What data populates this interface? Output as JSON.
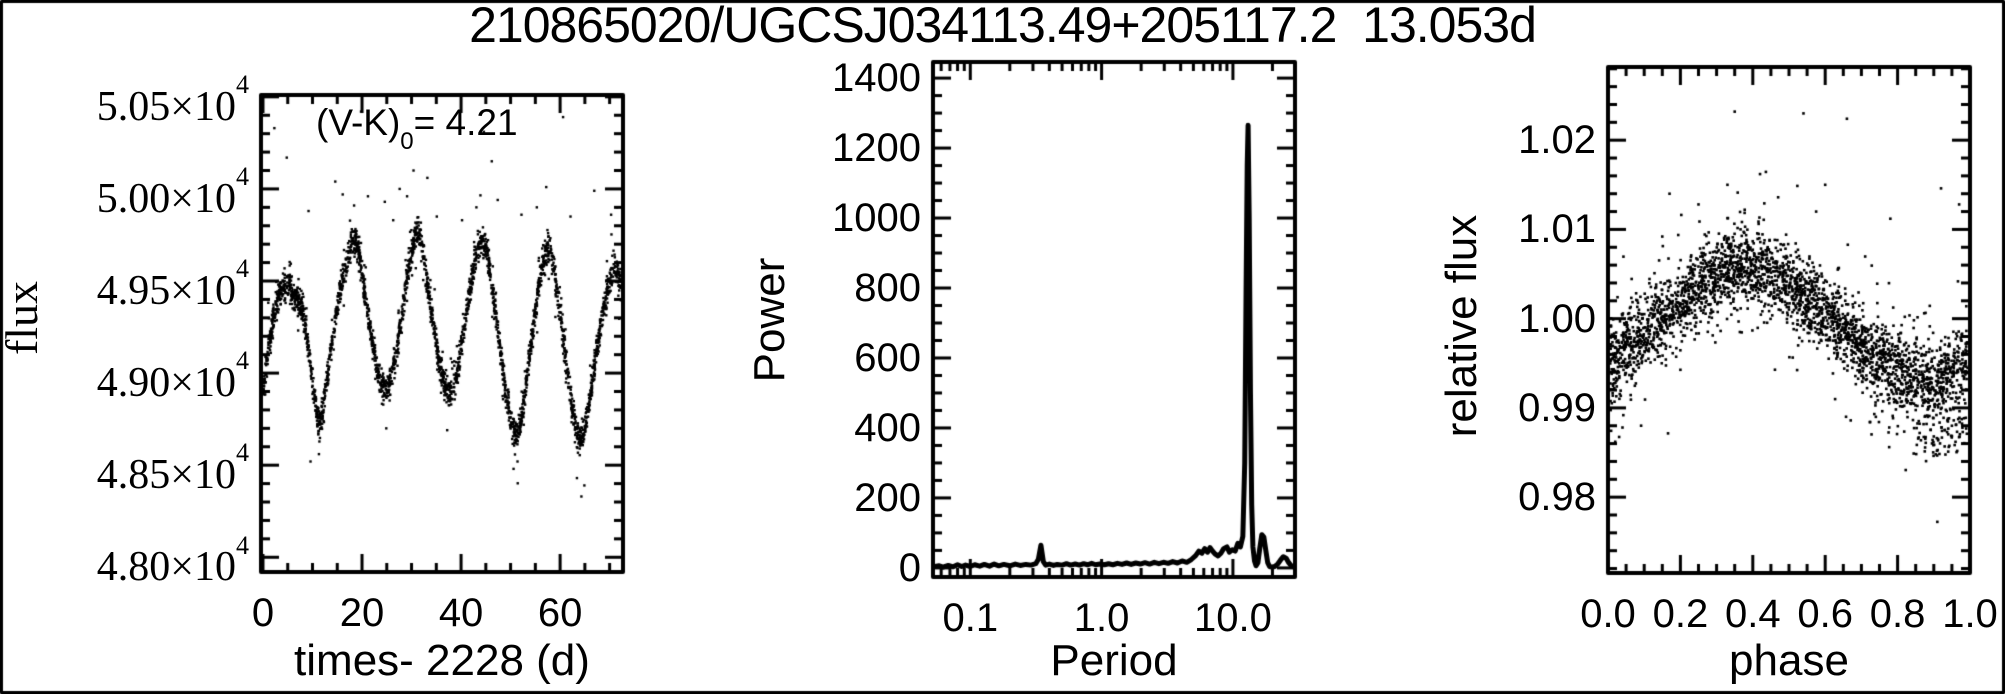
{
  "figure": {
    "title": "210865020/UGCSJ034113.49+205117.2  13.053d"
  },
  "chart_data": [
    {
      "type": "scatter",
      "xlabel": "times- 2228 (d)",
      "ylabel": "flux",
      "annotation": {
        "pre": "(V-K)",
        "sub": "0",
        "post": "= 4.21"
      },
      "xscale": "linear",
      "xlim": [
        -0.4,
        72.7
      ],
      "ylim": [
        47920,
        50510
      ],
      "xticks": {
        "values": [
          0,
          20,
          40,
          60
        ],
        "labels": [
          "0",
          "20",
          "40",
          "60"
        ]
      },
      "yticks": {
        "values": [
          48000,
          48500,
          49000,
          49500,
          50000,
          50500
        ],
        "labels": [
          "4.80×10^4",
          "4.85×10^4",
          "4.90×10^4",
          "4.95×10^4",
          "5.00×10^4",
          "5.05×10^4"
        ]
      },
      "n_points": 2900,
      "scatter_sigma": 38,
      "mean_curve": [
        [
          0,
          48900
        ],
        [
          1,
          49120
        ],
        [
          2,
          49280
        ],
        [
          3,
          49400
        ],
        [
          4,
          49470
        ],
        [
          5,
          49480
        ],
        [
          6,
          49440
        ],
        [
          7,
          49400
        ],
        [
          8,
          49330
        ],
        [
          9,
          49180
        ],
        [
          10,
          48950
        ],
        [
          11,
          48760
        ],
        [
          11.5,
          48720
        ],
        [
          12,
          48780
        ],
        [
          13,
          48980
        ],
        [
          14,
          49180
        ],
        [
          15,
          49360
        ],
        [
          16,
          49500
        ],
        [
          17,
          49620
        ],
        [
          18,
          49700
        ],
        [
          18.7,
          49720
        ],
        [
          19.5,
          49640
        ],
        [
          20,
          49540
        ],
        [
          21,
          49350
        ],
        [
          22,
          49180
        ],
        [
          23,
          49020
        ],
        [
          24,
          48930
        ],
        [
          25,
          48900
        ],
        [
          26,
          48980
        ],
        [
          27,
          49120
        ],
        [
          28,
          49300
        ],
        [
          29,
          49500
        ],
        [
          30,
          49650
        ],
        [
          31,
          49760
        ],
        [
          31.7,
          49750
        ],
        [
          32.5,
          49620
        ],
        [
          33.5,
          49430
        ],
        [
          34.5,
          49250
        ],
        [
          35.5,
          49080
        ],
        [
          36.5,
          48950
        ],
        [
          37.5,
          48890
        ],
        [
          38.5,
          48920
        ],
        [
          39.5,
          49050
        ],
        [
          40.5,
          49220
        ],
        [
          41.5,
          49400
        ],
        [
          42.5,
          49560
        ],
        [
          43.5,
          49680
        ],
        [
          44.3,
          49720
        ],
        [
          45,
          49680
        ],
        [
          46,
          49520
        ],
        [
          47,
          49320
        ],
        [
          48,
          49100
        ],
        [
          49,
          48900
        ],
        [
          50,
          48750
        ],
        [
          51,
          48670
        ],
        [
          51.7,
          48690
        ],
        [
          52.5,
          48820
        ],
        [
          53.5,
          49020
        ],
        [
          54.5,
          49240
        ],
        [
          55.5,
          49440
        ],
        [
          56.5,
          49600
        ],
        [
          57.3,
          49680
        ],
        [
          58,
          49660
        ],
        [
          59,
          49520
        ],
        [
          60,
          49330
        ],
        [
          61,
          49110
        ],
        [
          62,
          48890
        ],
        [
          63,
          48720
        ],
        [
          64,
          48640
        ],
        [
          64.7,
          48660
        ],
        [
          65.5,
          48780
        ],
        [
          66.5,
          48960
        ],
        [
          67.5,
          49140
        ],
        [
          68.5,
          49300
        ],
        [
          69.5,
          49440
        ],
        [
          70.5,
          49550
        ],
        [
          71.3,
          49570
        ],
        [
          72,
          49520
        ],
        [
          72.7,
          49460
        ]
      ],
      "outliers_high": [
        [
          2.3,
          50330
        ],
        [
          4.8,
          50170
        ],
        [
          9.2,
          49880
        ],
        [
          14.6,
          50040
        ],
        [
          16.1,
          49970
        ],
        [
          18.4,
          49910
        ],
        [
          19.8,
          50420
        ],
        [
          21.2,
          49960
        ],
        [
          24.6,
          49930
        ],
        [
          26.3,
          49830
        ],
        [
          27.6,
          50000
        ],
        [
          29.1,
          49960
        ],
        [
          30.4,
          50100
        ],
        [
          33.2,
          50060
        ],
        [
          35.1,
          49850
        ],
        [
          40.2,
          49830
        ],
        [
          43.1,
          49900
        ],
        [
          44.6,
          50310
        ],
        [
          46.2,
          50150
        ],
        [
          47.4,
          49940
        ],
        [
          52.2,
          49860
        ],
        [
          55.3,
          49900
        ],
        [
          57.2,
          50010
        ],
        [
          60.6,
          50390
        ],
        [
          62.1,
          49850
        ],
        [
          66.9,
          49990
        ],
        [
          70.3,
          49860
        ],
        [
          71.5,
          49900
        ]
      ],
      "outliers_low": [
        [
          9.6,
          48520
        ],
        [
          24.9,
          48700
        ],
        [
          37.2,
          48690
        ],
        [
          50.6,
          48480
        ],
        [
          63.4,
          48430
        ],
        [
          64.3,
          48330
        ],
        [
          64.9,
          48390
        ],
        [
          51.4,
          48520
        ],
        [
          11.3,
          48560
        ]
      ]
    },
    {
      "type": "line",
      "xlabel": "Period",
      "ylabel": "Power",
      "xscale": "log",
      "xlim": [
        0.052,
        29.7
      ],
      "ylim": [
        -26,
        1446
      ],
      "xticks": {
        "values": [
          0.1,
          1.0,
          10.0
        ],
        "labels": [
          "0.1",
          "1.0",
          "10.0"
        ]
      },
      "yticks": {
        "values": [
          0,
          200,
          400,
          600,
          800,
          1000,
          1200,
          1400
        ],
        "labels": [
          "0",
          "200",
          "400",
          "600",
          "800",
          "1000",
          "1200",
          "1400"
        ]
      },
      "peak_period": 13.053,
      "peak_power": 1265,
      "points": [
        [
          0.052,
          3
        ],
        [
          0.058,
          6
        ],
        [
          0.062,
          2
        ],
        [
          0.068,
          7
        ],
        [
          0.074,
          3
        ],
        [
          0.08,
          9
        ],
        [
          0.086,
          4
        ],
        [
          0.092,
          8
        ],
        [
          0.1,
          4
        ],
        [
          0.108,
          9
        ],
        [
          0.118,
          5
        ],
        [
          0.128,
          10
        ],
        [
          0.14,
          5
        ],
        [
          0.152,
          11
        ],
        [
          0.165,
          6
        ],
        [
          0.18,
          10
        ],
        [
          0.2,
          6
        ],
        [
          0.22,
          11
        ],
        [
          0.24,
          7
        ],
        [
          0.265,
          10
        ],
        [
          0.29,
          8
        ],
        [
          0.315,
          12
        ],
        [
          0.33,
          25
        ],
        [
          0.345,
          65
        ],
        [
          0.36,
          18
        ],
        [
          0.375,
          8
        ],
        [
          0.4,
          11
        ],
        [
          0.43,
          7
        ],
        [
          0.46,
          10
        ],
        [
          0.5,
          8
        ],
        [
          0.54,
          12
        ],
        [
          0.58,
          8
        ],
        [
          0.63,
          11
        ],
        [
          0.68,
          8
        ],
        [
          0.73,
          12
        ],
        [
          0.78,
          9
        ],
        [
          0.84,
          13
        ],
        [
          0.9,
          9
        ],
        [
          0.97,
          11
        ],
        [
          1.05,
          9
        ],
        [
          1.13,
          12
        ],
        [
          1.22,
          9
        ],
        [
          1.32,
          13
        ],
        [
          1.43,
          10
        ],
        [
          1.55,
          14
        ],
        [
          1.68,
          10
        ],
        [
          1.82,
          14
        ],
        [
          1.97,
          11
        ],
        [
          2.14,
          15
        ],
        [
          2.32,
          11
        ],
        [
          2.52,
          16
        ],
        [
          2.73,
          12
        ],
        [
          2.96,
          16
        ],
        [
          3.21,
          13
        ],
        [
          3.48,
          18
        ],
        [
          3.78,
          14
        ],
        [
          4.1,
          20
        ],
        [
          4.45,
          16
        ],
        [
          4.82,
          24
        ],
        [
          5.2,
          35
        ],
        [
          5.5,
          48
        ],
        [
          5.8,
          42
        ],
        [
          6.1,
          55
        ],
        [
          6.4,
          45
        ],
        [
          6.7,
          58
        ],
        [
          7.0,
          48
        ],
        [
          7.3,
          40
        ],
        [
          7.7,
          34
        ],
        [
          8.1,
          42
        ],
        [
          8.5,
          55
        ],
        [
          9.0,
          60
        ],
        [
          9.4,
          45
        ],
        [
          9.9,
          52
        ],
        [
          10.4,
          48
        ],
        [
          10.9,
          70
        ],
        [
          11.4,
          60
        ],
        [
          11.9,
          90
        ],
        [
          12.3,
          300
        ],
        [
          12.6,
          800
        ],
        [
          12.85,
          1150
        ],
        [
          13.05,
          1265
        ],
        [
          13.3,
          1000
        ],
        [
          13.6,
          500
        ],
        [
          13.9,
          180
        ],
        [
          14.2,
          60
        ],
        [
          14.6,
          20
        ],
        [
          15.0,
          6
        ],
        [
          15.5,
          15
        ],
        [
          16.0,
          55
        ],
        [
          16.6,
          95
        ],
        [
          17.2,
          88
        ],
        [
          17.8,
          50
        ],
        [
          18.4,
          15
        ],
        [
          19.0,
          4
        ],
        [
          19.8,
          2
        ],
        [
          20.8,
          4
        ],
        [
          21.8,
          10
        ],
        [
          23.0,
          22
        ],
        [
          24.2,
          32
        ],
        [
          25.4,
          28
        ],
        [
          26.6,
          15
        ],
        [
          27.8,
          6
        ],
        [
          29.0,
          3
        ],
        [
          29.7,
          2
        ]
      ]
    },
    {
      "type": "scatter",
      "xlabel": "phase",
      "ylabel": "relative flux",
      "xscale": "linear",
      "xlim": [
        0,
        1
      ],
      "ylim": [
        0.9715,
        1.0282
      ],
      "xticks": {
        "values": [
          0,
          0.2,
          0.4,
          0.6,
          0.8,
          1.0
        ],
        "labels": [
          "0.0",
          "0.2",
          "0.4",
          "0.6",
          "0.8",
          "1.0"
        ]
      },
      "yticks": {
        "values": [
          0.98,
          0.99,
          1.0,
          1.01,
          1.02
        ],
        "labels": [
          "0.98",
          "0.99",
          "1.00",
          "1.01",
          "1.02"
        ]
      },
      "n_points": 3000,
      "scatter_sigma": 0.0021,
      "mean_curve": [
        [
          0,
          0.9956
        ],
        [
          0.04,
          0.9966
        ],
        [
          0.08,
          0.9978
        ],
        [
          0.12,
          0.999
        ],
        [
          0.16,
          1.0002
        ],
        [
          0.2,
          1.0016
        ],
        [
          0.24,
          1.003
        ],
        [
          0.28,
          1.0042
        ],
        [
          0.32,
          1.0052
        ],
        [
          0.36,
          1.0058
        ],
        [
          0.4,
          1.0059
        ],
        [
          0.44,
          1.0054
        ],
        [
          0.48,
          1.0044
        ],
        [
          0.52,
          1.0032
        ],
        [
          0.56,
          1.0018
        ],
        [
          0.6,
          1.0004
        ],
        [
          0.64,
          0.999
        ],
        [
          0.68,
          0.9976
        ],
        [
          0.72,
          0.9964
        ],
        [
          0.76,
          0.9953
        ],
        [
          0.8,
          0.9944
        ],
        [
          0.84,
          0.9937
        ],
        [
          0.88,
          0.9932
        ],
        [
          0.92,
          0.9932
        ],
        [
          0.96,
          0.994
        ],
        [
          1.0,
          0.9952
        ]
      ],
      "outliers_high": [
        [
          0.17,
          1.014
        ],
        [
          0.25,
          1.0128
        ],
        [
          0.33,
          1.015
        ],
        [
          0.35,
          1.0232
        ],
        [
          0.42,
          1.0162
        ],
        [
          0.47,
          1.0136
        ],
        [
          0.54,
          1.023
        ],
        [
          0.575,
          1.012
        ],
        [
          0.6,
          1.015
        ],
        [
          0.66,
          1.0224
        ],
        [
          0.78,
          1.0112
        ],
        [
          0.92,
          1.0146
        ],
        [
          0.97,
          1.0128
        ]
      ],
      "outliers_low": [
        [
          0.02,
          0.9862
        ],
        [
          0.04,
          0.9878
        ],
        [
          0.88,
          0.9882
        ],
        [
          0.9,
          0.9868
        ],
        [
          0.93,
          0.9875
        ],
        [
          0.95,
          0.988
        ],
        [
          0.96,
          0.9862
        ],
        [
          0.98,
          0.9873
        ]
      ]
    }
  ]
}
